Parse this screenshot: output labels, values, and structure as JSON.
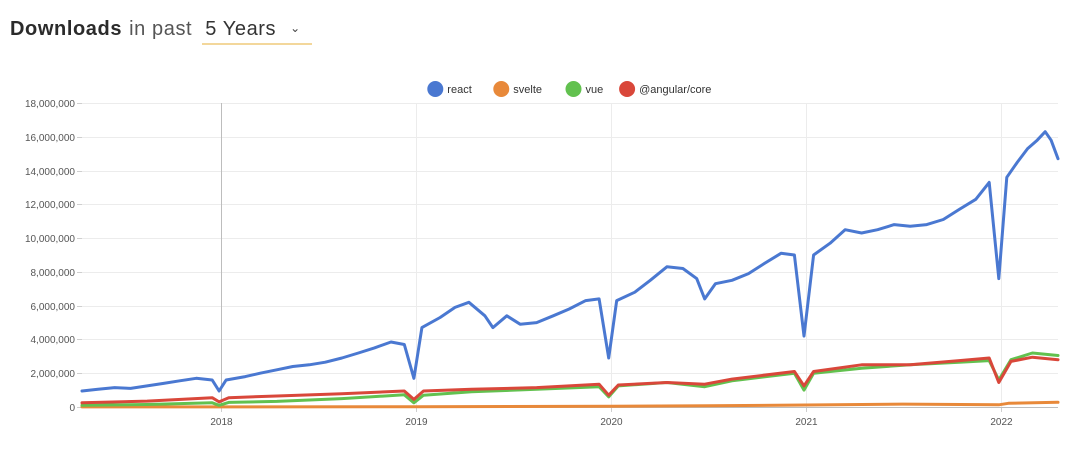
{
  "header": {
    "bold": "Downloads",
    "prefix": "in past",
    "range": "5 Years",
    "chevron_icon": "chevron-down-icon"
  },
  "chart_data": {
    "type": "line",
    "title": "",
    "xlabel": "",
    "ylabel": "",
    "xlim": [
      "2017-04-15",
      "2022-04-18"
    ],
    "ylim": [
      0,
      18000000
    ],
    "yticks": [
      0,
      2000000,
      4000000,
      6000000,
      8000000,
      10000000,
      12000000,
      14000000,
      16000000,
      18000000
    ],
    "ytick_labels": [
      "0",
      "2,000,000",
      "4,000,000",
      "6,000,000",
      "8,000,000",
      "10,000,000",
      "12,000,000",
      "14,000,000",
      "16,000,000",
      "18,000,000"
    ],
    "xticks": [
      "2018-01-01",
      "2019-01-01",
      "2020-01-01",
      "2021-01-01",
      "2022-01-01"
    ],
    "xtick_labels": [
      "2018",
      "2019",
      "2020",
      "2021",
      "2022"
    ],
    "grid": true,
    "legend_position": "top-center",
    "series": [
      {
        "name": "react",
        "color": "#4a78d1",
        "points": [
          [
            "2017-04-15",
            950000
          ],
          [
            "2017-05-15",
            1050000
          ],
          [
            "2017-06-15",
            1150000
          ],
          [
            "2017-07-15",
            1100000
          ],
          [
            "2017-08-15",
            1250000
          ],
          [
            "2017-09-15",
            1400000
          ],
          [
            "2017-10-15",
            1550000
          ],
          [
            "2017-11-15",
            1700000
          ],
          [
            "2017-12-15",
            1600000
          ],
          [
            "2017-12-28",
            950000
          ],
          [
            "2018-01-10",
            1600000
          ],
          [
            "2018-02-15",
            1800000
          ],
          [
            "2018-03-15",
            2000000
          ],
          [
            "2018-04-15",
            2200000
          ],
          [
            "2018-05-15",
            2400000
          ],
          [
            "2018-06-15",
            2500000
          ],
          [
            "2018-07-15",
            2650000
          ],
          [
            "2018-08-15",
            2900000
          ],
          [
            "2018-09-15",
            3200000
          ],
          [
            "2018-10-15",
            3500000
          ],
          [
            "2018-11-15",
            3850000
          ],
          [
            "2018-12-10",
            3700000
          ],
          [
            "2018-12-28",
            1700000
          ],
          [
            "2019-01-12",
            4700000
          ],
          [
            "2019-02-15",
            5300000
          ],
          [
            "2019-03-15",
            5900000
          ],
          [
            "2019-04-10",
            6200000
          ],
          [
            "2019-05-10",
            5400000
          ],
          [
            "2019-05-25",
            4700000
          ],
          [
            "2019-06-20",
            5400000
          ],
          [
            "2019-07-15",
            4900000
          ],
          [
            "2019-08-15",
            5000000
          ],
          [
            "2019-09-15",
            5400000
          ],
          [
            "2019-10-15",
            5800000
          ],
          [
            "2019-11-15",
            6300000
          ],
          [
            "2019-12-10",
            6400000
          ],
          [
            "2019-12-28",
            2900000
          ],
          [
            "2020-01-12",
            6300000
          ],
          [
            "2020-02-15",
            6800000
          ],
          [
            "2020-03-15",
            7500000
          ],
          [
            "2020-04-15",
            8300000
          ],
          [
            "2020-05-15",
            8200000
          ],
          [
            "2020-06-10",
            7600000
          ],
          [
            "2020-06-25",
            6400000
          ],
          [
            "2020-07-15",
            7300000
          ],
          [
            "2020-08-15",
            7500000
          ],
          [
            "2020-09-15",
            7900000
          ],
          [
            "2020-10-15",
            8500000
          ],
          [
            "2020-11-15",
            9100000
          ],
          [
            "2020-12-10",
            9000000
          ],
          [
            "2020-12-28",
            4200000
          ],
          [
            "2021-01-15",
            9000000
          ],
          [
            "2021-02-15",
            9700000
          ],
          [
            "2021-03-15",
            10500000
          ],
          [
            "2021-04-15",
            10300000
          ],
          [
            "2021-05-15",
            10500000
          ],
          [
            "2021-06-15",
            10800000
          ],
          [
            "2021-07-15",
            10700000
          ],
          [
            "2021-08-15",
            10800000
          ],
          [
            "2021-09-15",
            11100000
          ],
          [
            "2021-10-15",
            11700000
          ],
          [
            "2021-11-15",
            12300000
          ],
          [
            "2021-12-10",
            13300000
          ],
          [
            "2021-12-28",
            7600000
          ],
          [
            "2022-01-12",
            13600000
          ],
          [
            "2022-02-01",
            14500000
          ],
          [
            "2022-02-20",
            15300000
          ],
          [
            "2022-03-10",
            15800000
          ],
          [
            "2022-03-25",
            16300000
          ],
          [
            "2022-04-05",
            15800000
          ],
          [
            "2022-04-18",
            14700000
          ]
        ]
      },
      {
        "name": "svelte",
        "color": "#e8893a",
        "points": [
          [
            "2017-04-15",
            4000
          ],
          [
            "2018-01-01",
            8000
          ],
          [
            "2019-01-01",
            15000
          ],
          [
            "2020-01-01",
            40000
          ],
          [
            "2020-07-01",
            70000
          ],
          [
            "2021-01-01",
            120000
          ],
          [
            "2021-07-01",
            170000
          ],
          [
            "2021-12-28",
            130000
          ],
          [
            "2022-01-15",
            220000
          ],
          [
            "2022-04-18",
            280000
          ]
        ]
      },
      {
        "name": "vue",
        "color": "#62c14f",
        "points": [
          [
            "2017-04-15",
            100000
          ],
          [
            "2017-08-15",
            150000
          ],
          [
            "2017-12-15",
            250000
          ],
          [
            "2017-12-28",
            100000
          ],
          [
            "2018-01-15",
            270000
          ],
          [
            "2018-04-15",
            330000
          ],
          [
            "2018-08-15",
            500000
          ],
          [
            "2018-12-10",
            720000
          ],
          [
            "2018-12-28",
            250000
          ],
          [
            "2019-01-15",
            700000
          ],
          [
            "2019-04-15",
            900000
          ],
          [
            "2019-08-15",
            1050000
          ],
          [
            "2019-12-10",
            1200000
          ],
          [
            "2019-12-28",
            600000
          ],
          [
            "2020-01-15",
            1250000
          ],
          [
            "2020-04-15",
            1450000
          ],
          [
            "2020-06-25",
            1200000
          ],
          [
            "2020-08-15",
            1550000
          ],
          [
            "2020-12-10",
            2000000
          ],
          [
            "2020-12-28",
            1000000
          ],
          [
            "2021-01-15",
            2000000
          ],
          [
            "2021-04-15",
            2300000
          ],
          [
            "2021-07-15",
            2500000
          ],
          [
            "2021-10-15",
            2650000
          ],
          [
            "2021-12-10",
            2750000
          ],
          [
            "2021-12-28",
            1600000
          ],
          [
            "2022-01-20",
            2800000
          ],
          [
            "2022-03-01",
            3200000
          ],
          [
            "2022-04-18",
            3050000
          ]
        ]
      },
      {
        "name": "@angular/core",
        "color": "#d9473a",
        "points": [
          [
            "2017-04-15",
            250000
          ],
          [
            "2017-08-15",
            350000
          ],
          [
            "2017-12-15",
            550000
          ],
          [
            "2017-12-28",
            300000
          ],
          [
            "2018-01-15",
            550000
          ],
          [
            "2018-04-15",
            650000
          ],
          [
            "2018-08-15",
            780000
          ],
          [
            "2018-12-10",
            950000
          ],
          [
            "2018-12-28",
            450000
          ],
          [
            "2019-01-15",
            950000
          ],
          [
            "2019-04-15",
            1050000
          ],
          [
            "2019-08-15",
            1150000
          ],
          [
            "2019-12-10",
            1350000
          ],
          [
            "2019-12-28",
            700000
          ],
          [
            "2020-01-15",
            1300000
          ],
          [
            "2020-04-15",
            1450000
          ],
          [
            "2020-06-25",
            1350000
          ],
          [
            "2020-08-15",
            1650000
          ],
          [
            "2020-12-10",
            2100000
          ],
          [
            "2020-12-28",
            1250000
          ],
          [
            "2021-01-15",
            2100000
          ],
          [
            "2021-04-15",
            2500000
          ],
          [
            "2021-07-15",
            2500000
          ],
          [
            "2021-10-15",
            2750000
          ],
          [
            "2021-12-10",
            2900000
          ],
          [
            "2021-12-28",
            1450000
          ],
          [
            "2022-01-20",
            2700000
          ],
          [
            "2022-03-01",
            2950000
          ],
          [
            "2022-04-18",
            2800000
          ]
        ]
      }
    ]
  }
}
